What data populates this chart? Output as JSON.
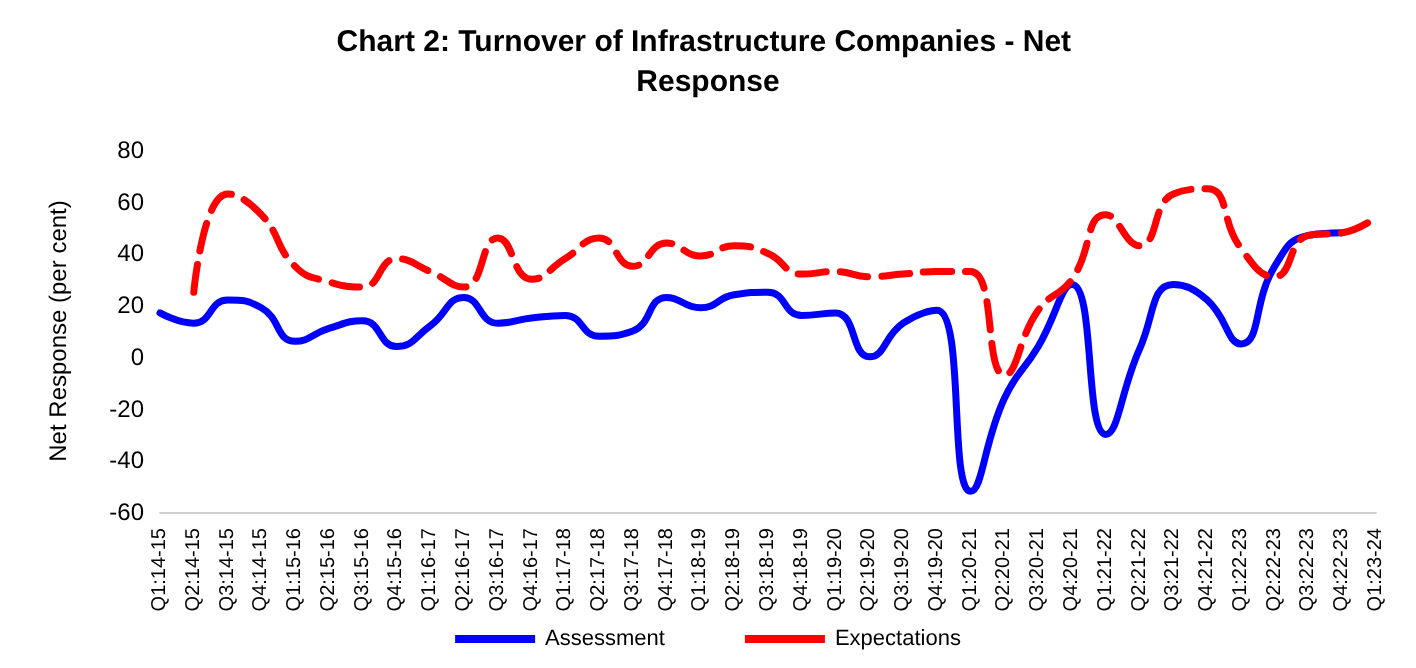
{
  "chart_data": {
    "type": "line",
    "title": "Chart 2: Turnover of Infrastructure Companies - Net Response",
    "ylabel": "Net Response (per cent)",
    "categories": [
      "Q1:14-15",
      "Q2:14-15",
      "Q3:14-15",
      "Q4:14-15",
      "Q1:15-16",
      "Q2:15-16",
      "Q3:15-16",
      "Q4:15-16",
      "Q1:16-17",
      "Q2:16-17",
      "Q3:16-17",
      "Q4:16-17",
      "Q1:17-18",
      "Q2:17-18",
      "Q3:17-18",
      "Q4:17-18",
      "Q1:18-19",
      "Q2:18-19",
      "Q3:18-19",
      "Q4:18-19",
      "Q1:19-20",
      "Q2:19-20",
      "Q3:19-20",
      "Q4:19-20",
      "Q1:20-21",
      "Q2:20-21",
      "Q3:20-21",
      "Q4:20-21",
      "Q1:21-22",
      "Q2:21-22",
      "Q3:21-22",
      "Q4:21-22",
      "Q1:22-23",
      "Q2:22-23",
      "Q3:22-23",
      "Q4:22-23",
      "Q1:23-24"
    ],
    "series": [
      {
        "name": "Assessment",
        "color": "#0000ff",
        "line_style": "solid",
        "values": [
          17,
          13,
          22,
          19,
          6,
          11,
          14,
          4,
          12,
          23,
          13,
          15,
          16,
          8,
          10,
          23,
          19,
          24,
          25,
          16,
          17,
          0,
          13,
          18,
          -52,
          -16,
          4,
          28,
          -30,
          3,
          28,
          22,
          5,
          35,
          47,
          48,
          null
        ]
      },
      {
        "name": "Expectations",
        "color": "#ff0000",
        "line_style": "dashed",
        "values": [
          null,
          25,
          63,
          55,
          35,
          29,
          27,
          38,
          33,
          27,
          46,
          30,
          38,
          46,
          35,
          44,
          39,
          43,
          40,
          32,
          33,
          31,
          32,
          33,
          33,
          -7,
          18,
          30,
          55,
          43,
          63,
          65,
          42,
          31,
          47,
          48,
          54
        ]
      }
    ],
    "ylim": [
      -60,
      80
    ],
    "yticks": [
      -60,
      -40,
      -20,
      0,
      20,
      40,
      60,
      80
    ],
    "grid": false,
    "legend": "bottom",
    "marker": "none"
  }
}
